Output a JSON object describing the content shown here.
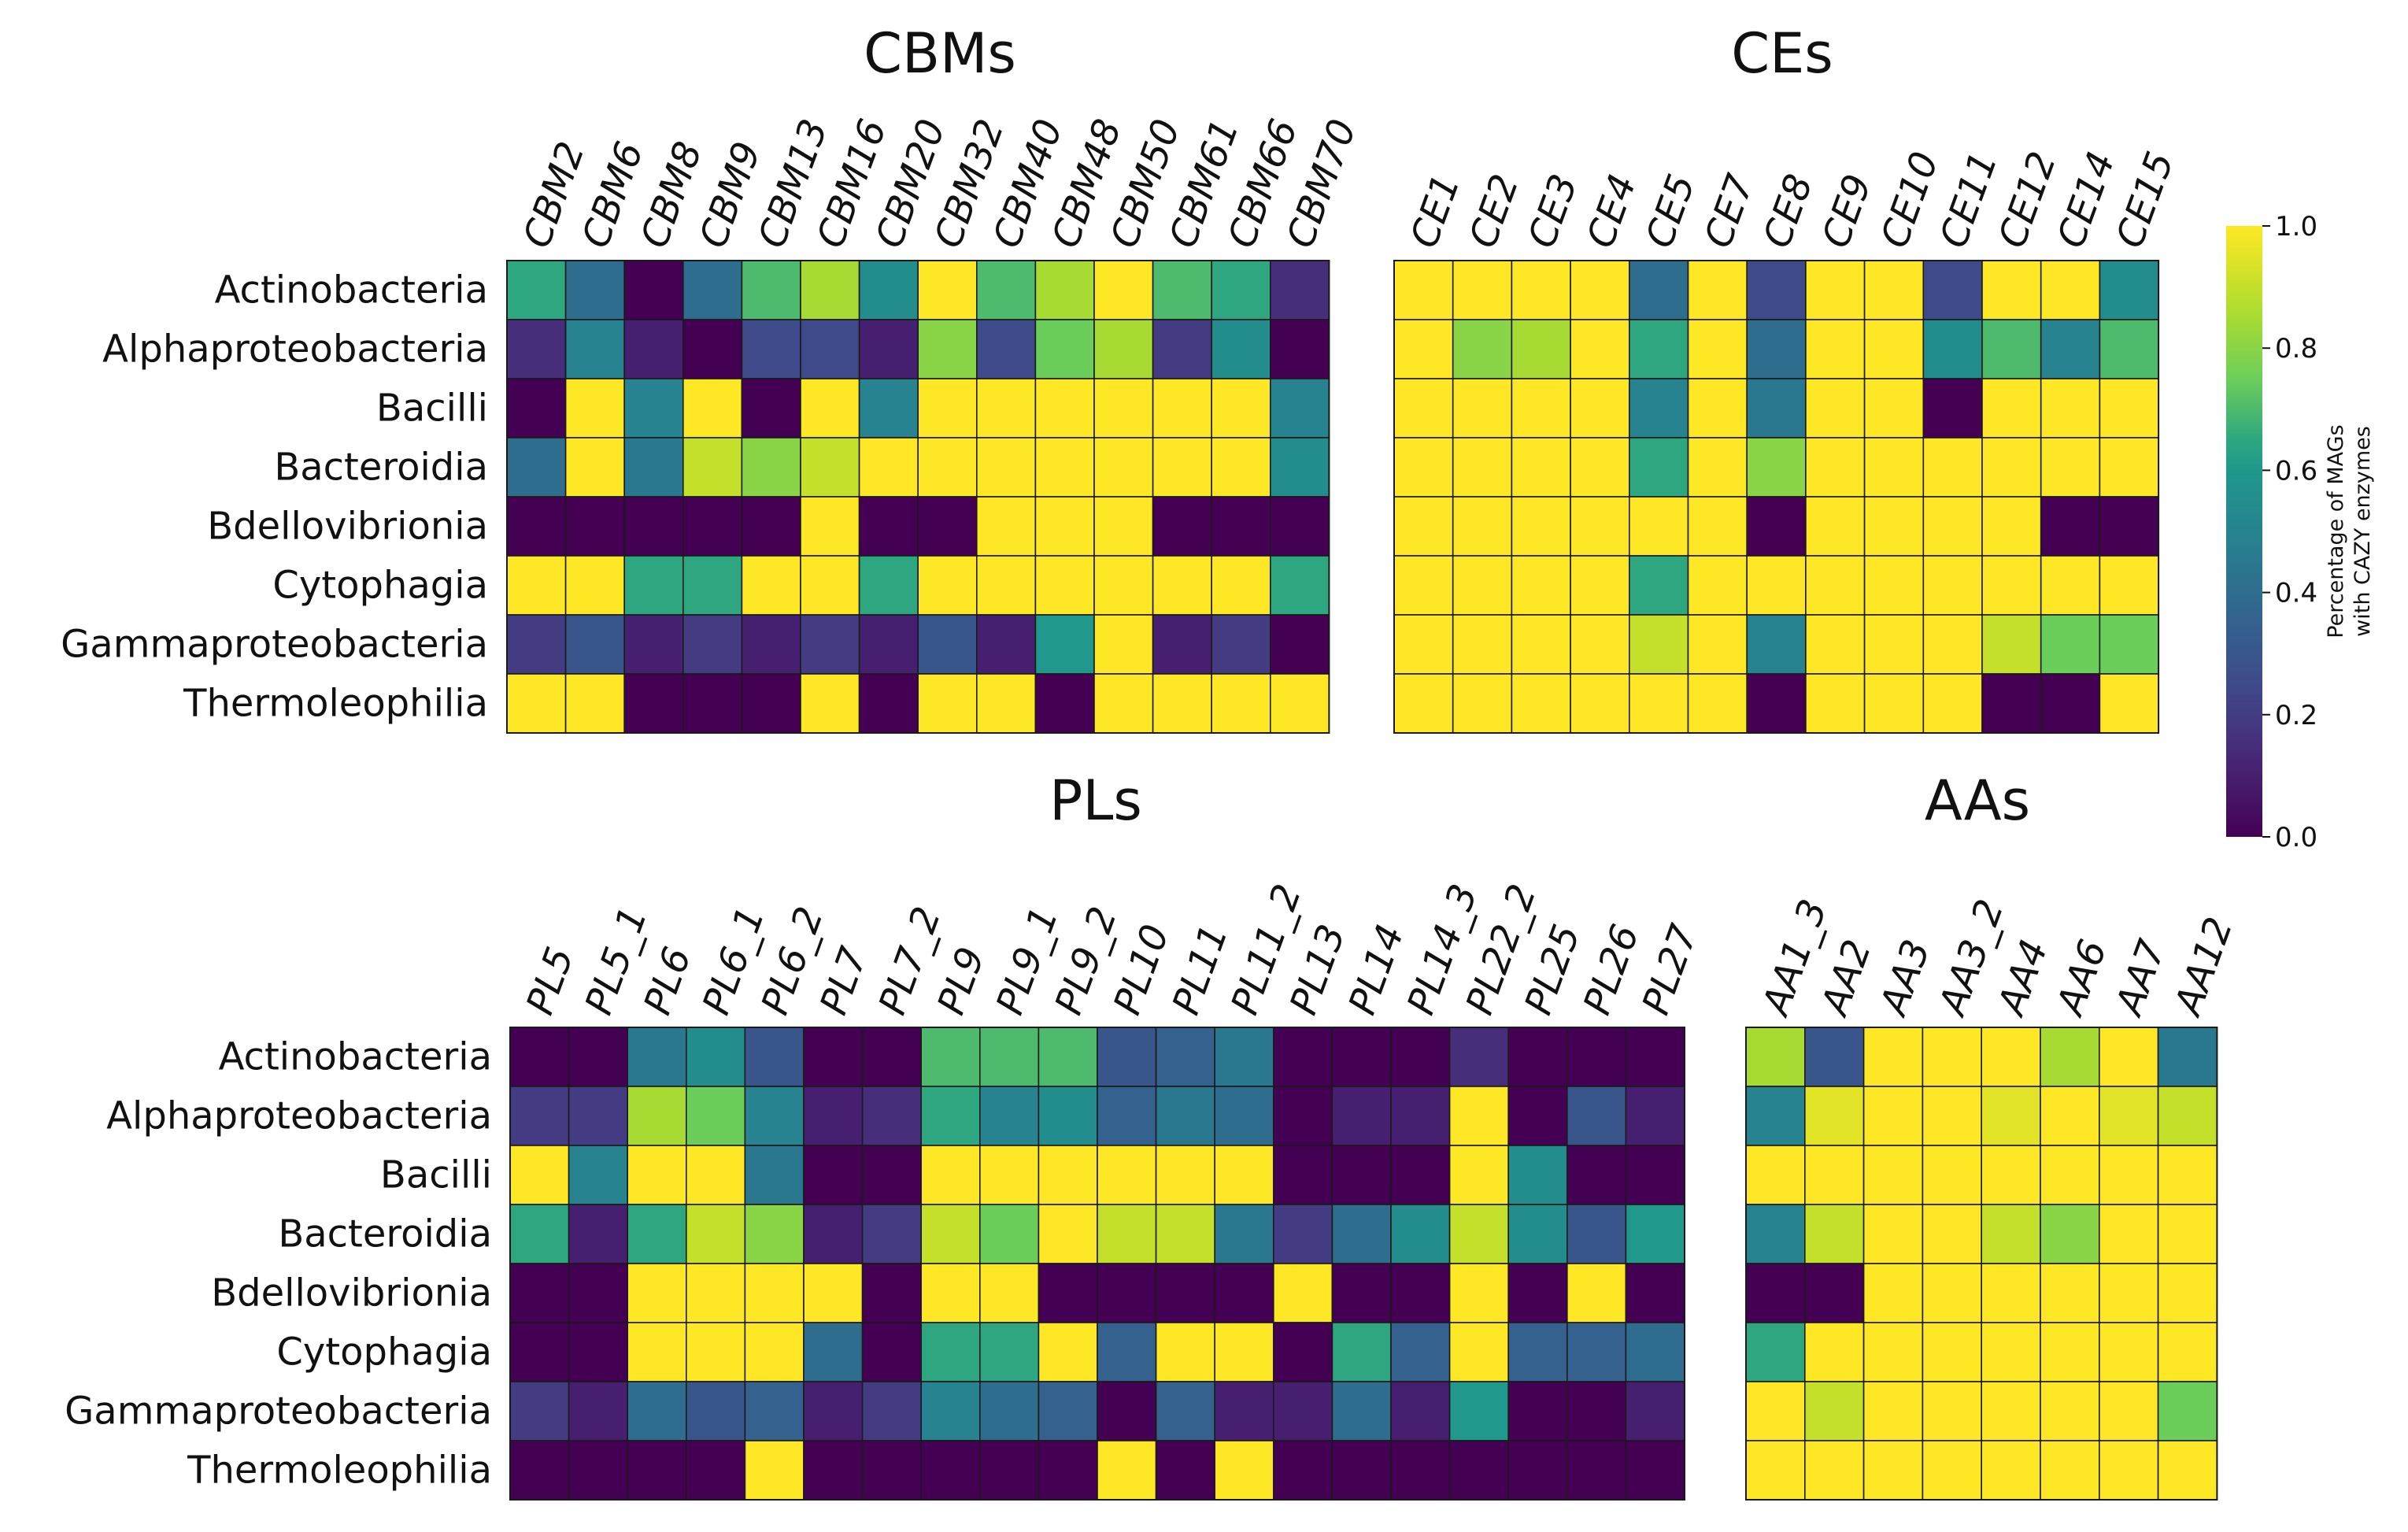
{
  "chart_data": [
    {
      "type": "heatmap",
      "title": "CBMs",
      "rows": [
        "Actinobacteria",
        "Alphaproteobacteria",
        "Bacilli",
        "Bacteroidia",
        "Bdellovibrionia",
        "Cytophagia",
        "Gammaproteobacteria",
        "Thermoleophilia"
      ],
      "columns": [
        "CBM2",
        "CBM6",
        "CBM8",
        "CBM9",
        "CBM13",
        "CBM16",
        "CBM20",
        "CBM32",
        "CBM40",
        "CBM48",
        "CBM50",
        "CBM61",
        "CBM66",
        "CBM70"
      ],
      "values": [
        [
          0.65,
          0.4,
          0,
          0.4,
          0.7,
          0.85,
          0.55,
          1,
          0.7,
          0.85,
          1,
          0.7,
          0.65,
          0.15
        ],
        [
          0.15,
          0.5,
          0.1,
          0,
          0.25,
          0.25,
          0.1,
          0.8,
          0.25,
          0.75,
          0.85,
          0.2,
          0.55,
          0
        ],
        [
          0,
          1,
          0.5,
          1,
          0,
          1,
          0.5,
          1,
          1,
          1,
          1,
          1,
          1,
          0.5
        ],
        [
          0.4,
          1,
          0.45,
          0.9,
          0.8,
          0.9,
          1,
          1,
          1,
          1,
          1,
          1,
          1,
          0.55
        ],
        [
          0,
          0,
          0,
          0,
          0,
          1,
          0,
          0,
          1,
          1,
          1,
          0,
          0,
          0
        ],
        [
          1,
          1,
          0.65,
          0.65,
          1,
          1,
          0.65,
          1,
          1,
          1,
          1,
          1,
          1,
          0.65
        ],
        [
          0.2,
          0.3,
          0.1,
          0.2,
          0.1,
          0.2,
          0.1,
          0.3,
          0.1,
          0.6,
          1,
          0.1,
          0.2,
          0
        ],
        [
          1,
          1,
          0,
          0,
          0,
          1,
          0,
          1,
          1,
          0,
          1,
          1,
          1,
          1
        ]
      ],
      "colorbar_range": [
        0,
        1
      ]
    },
    {
      "type": "heatmap",
      "title": "CEs",
      "rows": [
        "Actinobacteria",
        "Alphaproteobacteria",
        "Bacilli",
        "Bacteroidia",
        "Bdellovibrionia",
        "Cytophagia",
        "Gammaproteobacteria",
        "Thermoleophilia"
      ],
      "columns": [
        "CE1",
        "CE2",
        "CE3",
        "CE4",
        "CE5",
        "CE7",
        "CE8",
        "CE9",
        "CE10",
        "CE11",
        "CE12",
        "CE14",
        "CE15"
      ],
      "values": [
        [
          1,
          1,
          1,
          1,
          0.4,
          1,
          0.25,
          1,
          1,
          0.25,
          1,
          1,
          0.55
        ],
        [
          1,
          0.8,
          0.85,
          1,
          0.65,
          1,
          0.4,
          1,
          1,
          0.55,
          0.7,
          0.5,
          0.7
        ],
        [
          1,
          1,
          1,
          1,
          0.5,
          1,
          0.45,
          1,
          1,
          0,
          1,
          1,
          1
        ],
        [
          1,
          1,
          1,
          1,
          0.65,
          1,
          0.8,
          1,
          1,
          1,
          1,
          1,
          1
        ],
        [
          1,
          1,
          1,
          1,
          1,
          1,
          0,
          1,
          1,
          1,
          1,
          0,
          0
        ],
        [
          1,
          1,
          1,
          1,
          0.65,
          1,
          1,
          1,
          1,
          1,
          1,
          1,
          1
        ],
        [
          1,
          1,
          1,
          1,
          0.9,
          1,
          0.5,
          1,
          1,
          1,
          0.9,
          0.75,
          0.75
        ],
        [
          1,
          1,
          1,
          1,
          1,
          1,
          0,
          1,
          1,
          1,
          0,
          0,
          1
        ]
      ]
    },
    {
      "type": "heatmap",
      "title": "PLs",
      "rows": [
        "Actinobacteria",
        "Alphaproteobacteria",
        "Bacilli",
        "Bacteroidia",
        "Bdellovibrionia",
        "Cytophagia",
        "Gammaproteobacteria",
        "Thermoleophilia"
      ],
      "columns": [
        "PL5",
        "PL5_1",
        "PL6",
        "PL6_1",
        "PL6_2",
        "PL7",
        "PL7_2",
        "PL9",
        "PL9_1",
        "PL9_2",
        "PL10",
        "PL11",
        "PL11_2",
        "PL13",
        "PL14",
        "PL14_3",
        "PL22_2",
        "PL25",
        "PL26",
        "PL27"
      ],
      "values": [
        [
          0,
          0,
          0.45,
          0.55,
          0.3,
          0,
          0,
          0.7,
          0.7,
          0.7,
          0.3,
          0.35,
          0.45,
          0,
          0,
          0,
          0.15,
          0,
          0,
          0
        ],
        [
          0.2,
          0.2,
          0.85,
          0.75,
          0.5,
          0.1,
          0.15,
          0.65,
          0.5,
          0.55,
          0.35,
          0.45,
          0.4,
          0,
          0.1,
          0.1,
          1,
          0,
          0.3,
          0.1
        ],
        [
          1,
          0.5,
          1,
          1,
          0.45,
          0,
          0,
          1,
          1,
          1,
          1,
          1,
          1,
          0,
          0,
          0,
          1,
          0.55,
          0,
          0
        ],
        [
          0.65,
          0.1,
          0.65,
          0.9,
          0.8,
          0.1,
          0.2,
          0.9,
          0.75,
          1,
          0.9,
          0.9,
          0.45,
          0.2,
          0.4,
          0.55,
          0.9,
          0.55,
          0.3,
          0.6
        ],
        [
          0,
          0,
          1,
          1,
          1,
          1,
          0,
          1,
          1,
          0,
          0,
          0,
          0,
          1,
          0,
          0,
          1,
          0,
          1,
          0
        ],
        [
          0,
          0,
          1,
          1,
          1,
          0.4,
          0,
          0.65,
          0.65,
          1,
          0.35,
          1,
          1,
          0,
          0.65,
          0.35,
          1,
          0.35,
          0.35,
          0.4
        ],
        [
          0.2,
          0.1,
          0.4,
          0.3,
          0.35,
          0.1,
          0.2,
          0.5,
          0.4,
          0.35,
          0,
          0.35,
          0.1,
          0.1,
          0.4,
          0.1,
          0.6,
          0,
          0,
          0.1
        ],
        [
          0,
          0,
          0,
          0,
          1,
          0,
          0,
          0,
          0,
          0,
          1,
          0,
          1,
          0,
          0,
          0,
          0,
          0,
          0,
          0
        ]
      ]
    },
    {
      "type": "heatmap",
      "title": "AAs",
      "rows": [
        "Actinobacteria",
        "Alphaproteobacteria",
        "Bacilli",
        "Bacteroidia",
        "Bdellovibrionia",
        "Cytophagia",
        "Gammaproteobacteria",
        "Thermoleophilia"
      ],
      "columns": [
        "AA1_3",
        "AA2",
        "AA3",
        "AA3_2",
        "AA4",
        "AA6",
        "AA7",
        "AA12"
      ],
      "values": [
        [
          0.85,
          0.3,
          1,
          1,
          1,
          0.85,
          1,
          0.45
        ],
        [
          0.5,
          0.95,
          1,
          1,
          0.95,
          1,
          0.95,
          0.9
        ],
        [
          1,
          1,
          1,
          1,
          1,
          1,
          1,
          1
        ],
        [
          0.5,
          0.9,
          1,
          1,
          0.9,
          0.8,
          1,
          1
        ],
        [
          0,
          0,
          1,
          1,
          1,
          1,
          1,
          1
        ],
        [
          0.65,
          1,
          1,
          1,
          1,
          1,
          1,
          1
        ],
        [
          1,
          0.9,
          1,
          1,
          1,
          1,
          1,
          0.75
        ],
        [
          1,
          1,
          1,
          1,
          1,
          1,
          1,
          1
        ]
      ]
    }
  ],
  "colorbar": {
    "label_line1": "Percentage of MAGs",
    "label_line2": "with CAZY enzymes",
    "ticks": [
      "0.0",
      "0.2",
      "0.4",
      "0.6",
      "0.8",
      "1.0"
    ],
    "colormap": "viridis"
  }
}
